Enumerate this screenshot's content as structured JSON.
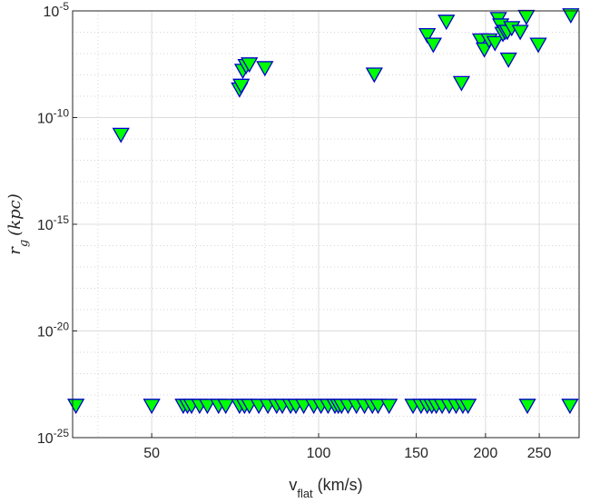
{
  "chart_data": {
    "type": "scatter",
    "xlabel": "v",
    "xlabel_sub": "flat",
    "xlabel_unit": " (km/s)",
    "ylabel": "r",
    "ylabel_sub": "g",
    "ylabel_tail": "(kpc)",
    "x_scale": "log",
    "y_scale": "log",
    "xlim": [
      36,
      295
    ],
    "ylim_exp": [
      -25,
      -5
    ],
    "grid": true,
    "marker": {
      "shape": "triangle-down",
      "fill": "#00ff00",
      "edge": "#0000cc"
    },
    "x_ticks": [
      {
        "value": 50,
        "label": "50"
      },
      {
        "value": 100,
        "label": "100"
      },
      {
        "value": 150,
        "label": "150"
      },
      {
        "value": 200,
        "label": "200"
      },
      {
        "value": 250,
        "label": "250"
      }
    ],
    "y_ticks": [
      {
        "exp": -25,
        "base": "10",
        "sup": "-25"
      },
      {
        "exp": -20,
        "base": "10",
        "sup": "-20"
      },
      {
        "exp": -15,
        "base": "10",
        "sup": "-15"
      },
      {
        "exp": -10,
        "base": "10",
        "sup": "-10"
      },
      {
        "exp": -5,
        "base": "10",
        "sup": "-5"
      }
    ],
    "points": [
      {
        "x": 44,
        "y": 1.5e-11
      },
      {
        "x": 72,
        "y": 2e-09
      },
      {
        "x": 72.5,
        "y": 3e-09
      },
      {
        "x": 73,
        "y": 1.5e-08
      },
      {
        "x": 74,
        "y": 2.5e-08
      },
      {
        "x": 75,
        "y": 3e-08
      },
      {
        "x": 80,
        "y": 2e-08
      },
      {
        "x": 126,
        "y": 1e-08
      },
      {
        "x": 157,
        "y": 7e-07
      },
      {
        "x": 161,
        "y": 2.5e-07
      },
      {
        "x": 170,
        "y": 3e-06
      },
      {
        "x": 181,
        "y": 4e-09
      },
      {
        "x": 196,
        "y": 4e-07
      },
      {
        "x": 199,
        "y": 1.5e-07
      },
      {
        "x": 203,
        "y": 4e-07
      },
      {
        "x": 208,
        "y": 3e-07
      },
      {
        "x": 211,
        "y": 4e-06
      },
      {
        "x": 213,
        "y": 2e-06
      },
      {
        "x": 215,
        "y": 8e-07
      },
      {
        "x": 217,
        "y": 1e-06
      },
      {
        "x": 219,
        "y": 1e-06
      },
      {
        "x": 220,
        "y": 5e-08
      },
      {
        "x": 223,
        "y": 1.5e-06
      },
      {
        "x": 231,
        "y": 1e-06
      },
      {
        "x": 237,
        "y": 5e-06
      },
      {
        "x": 249,
        "y": 2.5e-07
      },
      {
        "x": 285,
        "y": 6e-06
      },
      {
        "x": 36.5,
        "y": 3e-24
      },
      {
        "x": 50,
        "y": 3e-24
      },
      {
        "x": 57,
        "y": 3e-24
      },
      {
        "x": 58,
        "y": 3e-24
      },
      {
        "x": 59,
        "y": 3e-24
      },
      {
        "x": 61,
        "y": 3e-24
      },
      {
        "x": 63,
        "y": 3e-24
      },
      {
        "x": 66,
        "y": 3e-24
      },
      {
        "x": 68,
        "y": 3e-24
      },
      {
        "x": 72,
        "y": 3e-24
      },
      {
        "x": 73.5,
        "y": 3e-24
      },
      {
        "x": 75,
        "y": 3e-24
      },
      {
        "x": 78,
        "y": 3e-24
      },
      {
        "x": 81,
        "y": 3e-24
      },
      {
        "x": 84,
        "y": 3e-24
      },
      {
        "x": 86,
        "y": 3e-24
      },
      {
        "x": 89,
        "y": 3e-24
      },
      {
        "x": 91,
        "y": 3e-24
      },
      {
        "x": 94,
        "y": 3e-24
      },
      {
        "x": 98,
        "y": 3e-24
      },
      {
        "x": 101,
        "y": 3e-24
      },
      {
        "x": 104,
        "y": 3e-24
      },
      {
        "x": 107,
        "y": 3e-24
      },
      {
        "x": 108.5,
        "y": 3e-24
      },
      {
        "x": 110,
        "y": 3e-24
      },
      {
        "x": 113,
        "y": 3e-24
      },
      {
        "x": 117,
        "y": 3e-24
      },
      {
        "x": 121,
        "y": 3e-24
      },
      {
        "x": 125,
        "y": 3e-24
      },
      {
        "x": 128,
        "y": 3e-24
      },
      {
        "x": 134,
        "y": 3e-24
      },
      {
        "x": 148,
        "y": 3e-24
      },
      {
        "x": 153,
        "y": 3e-24
      },
      {
        "x": 157,
        "y": 3e-24
      },
      {
        "x": 160,
        "y": 3e-24
      },
      {
        "x": 163,
        "y": 3e-24
      },
      {
        "x": 167,
        "y": 3e-24
      },
      {
        "x": 172,
        "y": 3e-24
      },
      {
        "x": 177,
        "y": 3e-24
      },
      {
        "x": 182,
        "y": 3e-24
      },
      {
        "x": 186,
        "y": 3e-24
      },
      {
        "x": 238,
        "y": 3e-24
      },
      {
        "x": 284,
        "y": 3e-24
      }
    ]
  }
}
